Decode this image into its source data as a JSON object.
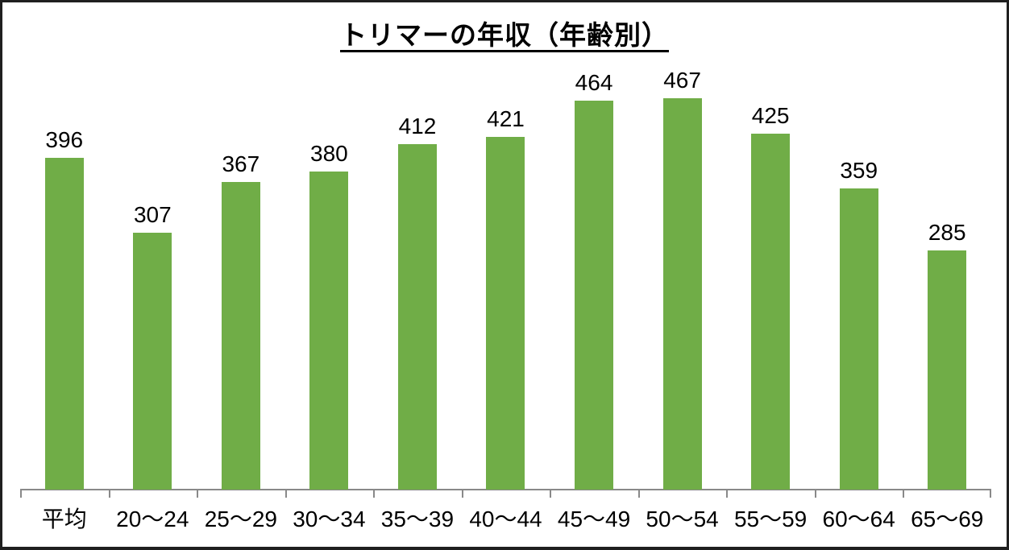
{
  "chart_data": {
    "type": "bar",
    "title": "トリマーの年収（年齢別）",
    "categories": [
      "平均",
      "20〜24",
      "25〜29",
      "30〜34",
      "35〜39",
      "40〜44",
      "45〜49",
      "50〜54",
      "55〜59",
      "60〜64",
      "65〜69"
    ],
    "values": [
      396,
      307,
      367,
      380,
      412,
      421,
      464,
      467,
      425,
      359,
      285
    ],
    "xlabel": "",
    "ylabel": "",
    "ylim": [
      0,
      500
    ],
    "grid": false,
    "legend": false,
    "value_labels_shown": true,
    "bar_color": "#70AD47",
    "axis_color": "#898989",
    "text_color": "#000000",
    "title_underlined": true
  }
}
